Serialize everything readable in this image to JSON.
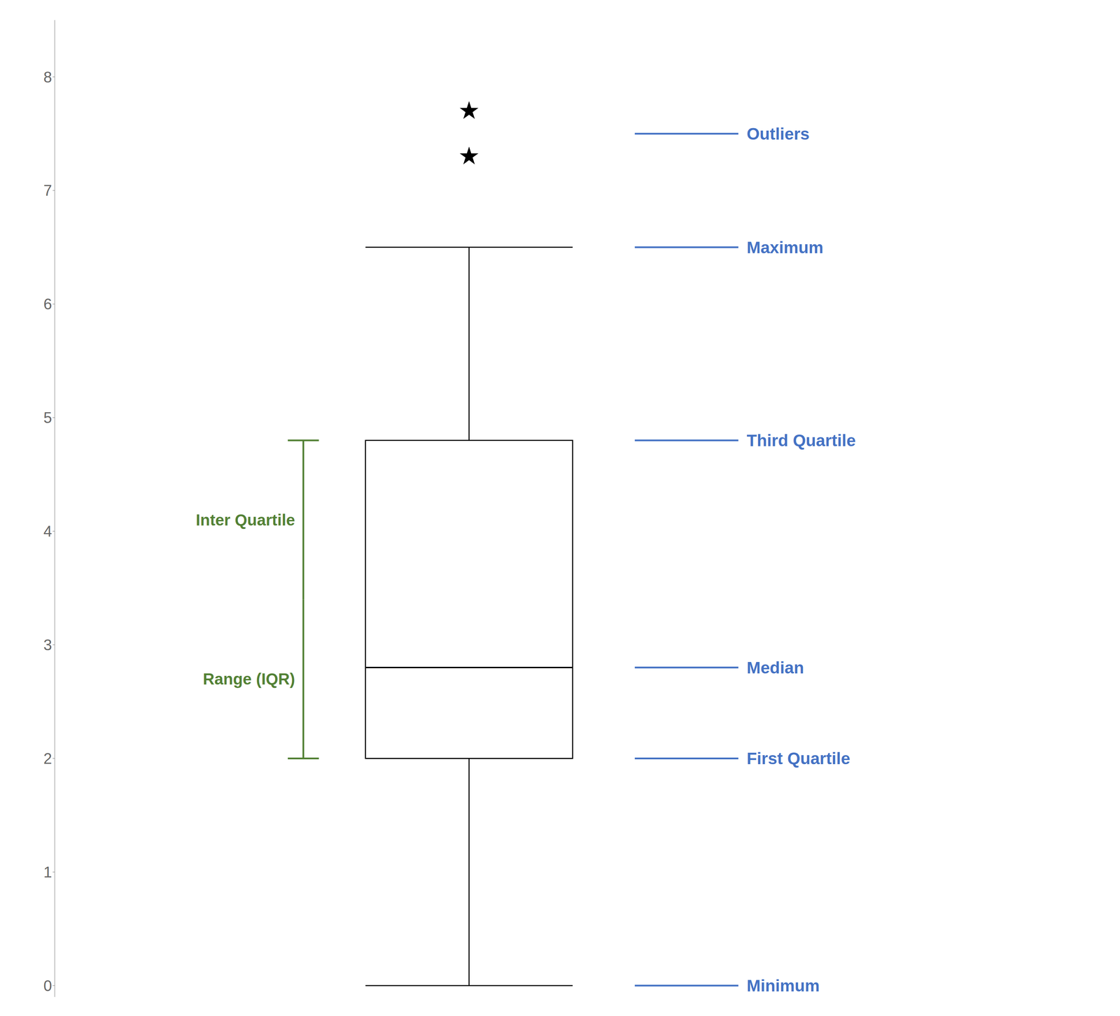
{
  "chart_data": {
    "type": "box",
    "q1": 2.0,
    "median": 2.8,
    "q3": 4.8,
    "whisker_min": 0.0,
    "whisker_max": 6.5,
    "outliers": [
      7.7,
      7.3
    ],
    "color": "#000000",
    "marker": "star",
    "ylim": [
      -0.1,
      8.5
    ],
    "yticks": [
      0,
      1,
      2,
      3,
      4,
      5,
      6,
      7,
      8
    ],
    "tick_labels": "y",
    "annotations": [
      {
        "text": "Outliers",
        "y": 7.5,
        "color": "#4472c4"
      },
      {
        "text": "Maximum",
        "y": 6.5,
        "color": "#4472c4"
      },
      {
        "text": "Third Quartile",
        "y": 4.8,
        "color": "#4472c4"
      },
      {
        "text": "Median",
        "y": 2.8,
        "color": "#4472c4"
      },
      {
        "text": "First Quartile",
        "y": 2.0,
        "color": "#4472c4"
      },
      {
        "text": "Minimum",
        "y": 0.0,
        "color": "#4472c4"
      }
    ],
    "range_annotation": {
      "text": [
        "Inter Quartile",
        "Range (IQR)"
      ],
      "color": "#538135"
    }
  }
}
